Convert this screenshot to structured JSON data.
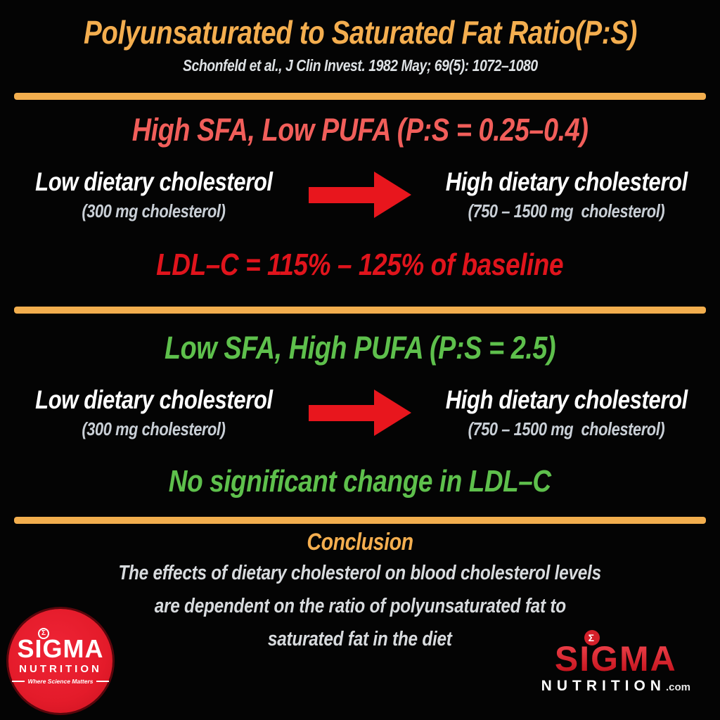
{
  "title": "Polyunsaturated to Saturated Fat Ratio(P:S)",
  "citation": "Schonfeld et al., J Clin Invest. 1982 May; 69(5): 1072–1080",
  "sections": [
    {
      "heading": "High SFA, Low PUFA (P:S = 0.25–0.4)",
      "left_label": "Low dietary cholesterol",
      "left_sub": "(300 mg cholesterol)",
      "right_label": "High dietary cholesterol",
      "right_sub": "(750 – 1500 mg  cholesterol)",
      "result": "LDL–C = 115% – 125% of baseline"
    },
    {
      "heading": "Low SFA, High PUFA (P:S = 2.5)",
      "left_label": "Low dietary cholesterol",
      "left_sub": "(300 mg cholesterol)",
      "right_label": "High dietary cholesterol",
      "right_sub": "(750 – 1500 mg  cholesterol)",
      "result": "No significant change in LDL–C"
    }
  ],
  "conclusion": {
    "heading": "Conclusion",
    "lines": [
      "The effects of dietary cholesterol on blood cholesterol levels",
      "are dependent on the ratio of polyunsaturated fat to",
      "saturated fat in the diet"
    ]
  },
  "logos": {
    "badge": {
      "brand": "SIGMA",
      "sub": "NUTRITION",
      "tagline": "Where Science Matters",
      "sigma": "Σ"
    },
    "wordmark": {
      "brand": "SIGMA",
      "sub": "NUTRITION",
      "domain": ".com",
      "sigma": "Σ"
    }
  },
  "colors": {
    "background": "#040404",
    "accent_orange": "#f4ae4f",
    "salmon_red": "#f15e5a",
    "bright_red": "#e0141c",
    "green": "#5ec04c",
    "white": "#ffffff",
    "gray": "#c9cfd6",
    "arrow_red": "#e8161d",
    "logo_red": "#e41b2a"
  }
}
